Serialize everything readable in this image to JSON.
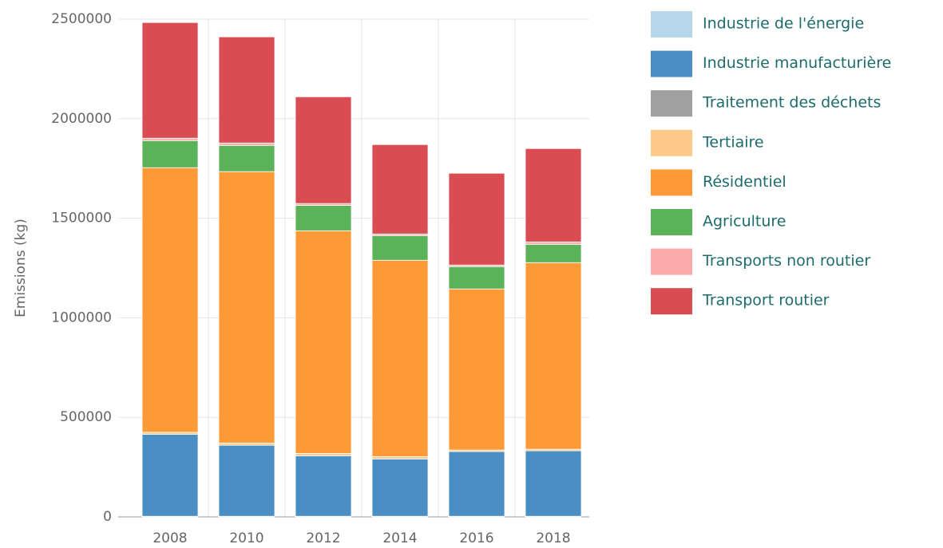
{
  "chart_data": {
    "type": "stacked_bar",
    "y_label": "Emissions (kg)",
    "categories": [
      "2008",
      "2010",
      "2012",
      "2014",
      "2016",
      "2018"
    ],
    "series": [
      {
        "name": "Industrie de l'énergie",
        "color": "#b7d6ea",
        "values": [
          3000,
          3000,
          3000,
          3000,
          3000,
          3000
        ]
      },
      {
        "name": "Industrie manufacturière",
        "color": "#4a8fc4",
        "values": [
          412000,
          357000,
          304000,
          288000,
          325000,
          329000
        ]
      },
      {
        "name": "Traitement des déchets",
        "color": "#a0a0a0",
        "values": [
          0,
          0,
          0,
          0,
          0,
          0
        ]
      },
      {
        "name": "Tertiaire",
        "color": "#fdc98a",
        "values": [
          10000,
          11000,
          12000,
          12000,
          8000,
          8000
        ]
      },
      {
        "name": "Résidentiel",
        "color": "#fd9a38",
        "values": [
          1329000,
          1363000,
          1118000,
          986000,
          809000,
          937000
        ]
      },
      {
        "name": "Agriculture",
        "color": "#5cb258",
        "values": [
          136000,
          132000,
          128000,
          124000,
          112000,
          92000
        ]
      },
      {
        "name": "Transports non routier",
        "color": "#fcabab",
        "values": [
          12000,
          12000,
          9000,
          8000,
          8000,
          12000
        ]
      },
      {
        "name": "Transport routier",
        "color": "#d94c51",
        "values": [
          581000,
          533000,
          536000,
          449000,
          461000,
          469000
        ]
      }
    ],
    "ylim": [
      0,
      2500000
    ],
    "yticks": [
      0,
      500000,
      1000000,
      1500000,
      2000000,
      2500000
    ],
    "grid": true
  }
}
